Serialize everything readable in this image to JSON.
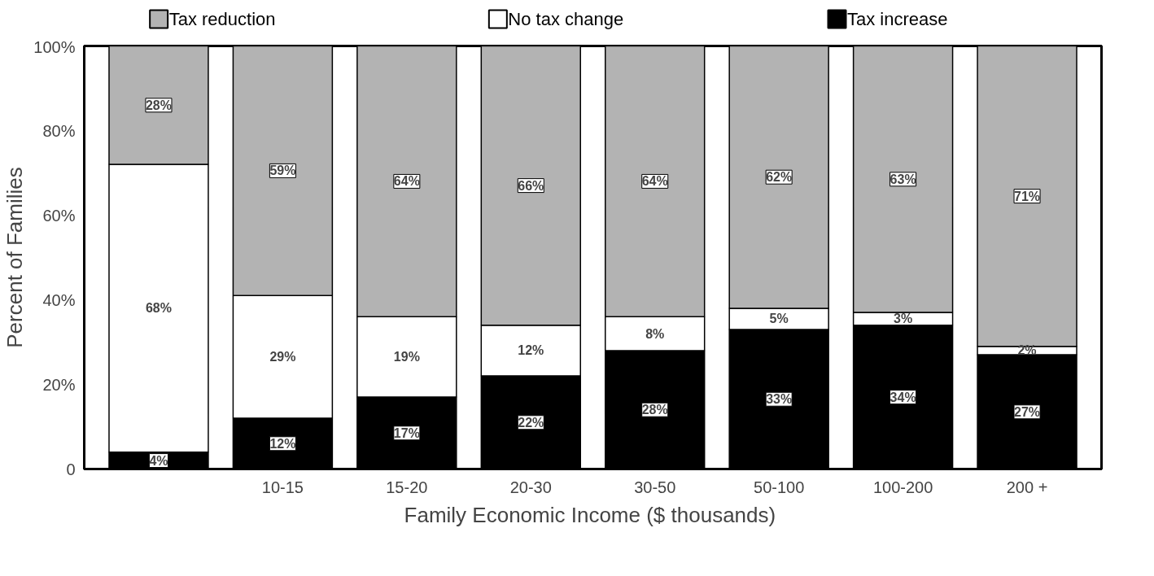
{
  "chart_data": {
    "type": "bar",
    "stacked": true,
    "categories": [
      null,
      "10-15",
      "15-20",
      "20-30",
      "30-50",
      "50-100",
      "100-200",
      "200 +"
    ],
    "xlabel": "Family Economic Income  ($ thousands)",
    "ylabel": "Percent of Families",
    "ylim": [
      0,
      100
    ],
    "yticks": [
      {
        "value": 0,
        "label": "0"
      },
      {
        "value": 20,
        "label": "20%"
      },
      {
        "value": 40,
        "label": "40%"
      },
      {
        "value": 60,
        "label": "60%"
      },
      {
        "value": 80,
        "label": "80%"
      },
      {
        "value": 100,
        "label": "100%"
      }
    ],
    "grid": false,
    "legend": "top",
    "series": [
      {
        "name": "Tax increase",
        "color": "#000000",
        "values": [
          4,
          12,
          17,
          22,
          28,
          33,
          34,
          27
        ],
        "value_labels": [
          "4%",
          "12%",
          "17%",
          "22%",
          "28%",
          "33%",
          "34%",
          "27%"
        ]
      },
      {
        "name": "No tax change",
        "color": "#ffffff",
        "values": [
          68,
          29,
          19,
          12,
          8,
          5,
          3,
          2
        ],
        "value_labels": [
          "68%",
          "29%",
          "19%",
          "12%",
          "8%",
          "5%",
          "3%",
          "2%"
        ]
      },
      {
        "name": "Tax reduction",
        "color": "#b3b3b3",
        "values": [
          28,
          59,
          64,
          66,
          64,
          62,
          63,
          71
        ],
        "value_labels": [
          "28%",
          "59%",
          "64%",
          "66%",
          "64%",
          "62%",
          "63%",
          "71%"
        ]
      }
    ]
  }
}
